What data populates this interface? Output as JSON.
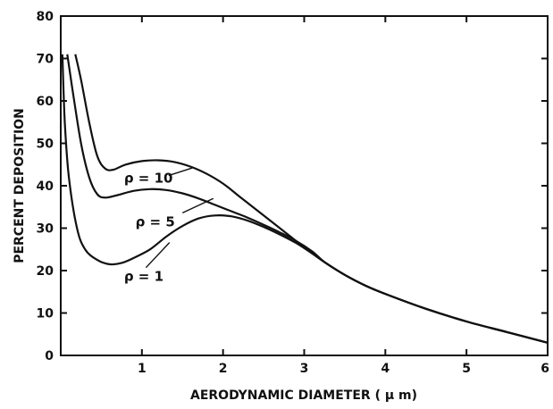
{
  "chart_data": {
    "type": "line",
    "title": "",
    "xlabel": "AERODYNAMIC DIAMETER ( μ m)",
    "ylabel": "PERCENT DEPOSITION",
    "xlim": [
      0,
      6
    ],
    "ylim": [
      0,
      80
    ],
    "x_ticks": [
      "1",
      "2",
      "3",
      "4",
      "5",
      "6"
    ],
    "y_ticks": [
      "0",
      "10",
      "20",
      "30",
      "40",
      "50",
      "60",
      "70",
      "80"
    ],
    "grid": false,
    "series": [
      {
        "name": "ρ = 10",
        "label": "ρ = 10",
        "points": [
          [
            0.18,
            71
          ],
          [
            0.25,
            65
          ],
          [
            0.35,
            55
          ],
          [
            0.45,
            47
          ],
          [
            0.55,
            44
          ],
          [
            0.65,
            43.8
          ],
          [
            0.8,
            45
          ],
          [
            1.0,
            45.8
          ],
          [
            1.2,
            46
          ],
          [
            1.4,
            45.6
          ],
          [
            1.6,
            44.5
          ],
          [
            1.8,
            42.8
          ],
          [
            2.0,
            40.5
          ],
          [
            2.2,
            37.5
          ],
          [
            2.4,
            34.5
          ],
          [
            2.6,
            31.5
          ],
          [
            2.8,
            28.5
          ],
          [
            3.0,
            25.5
          ],
          [
            3.25,
            22
          ],
          [
            3.5,
            19
          ],
          [
            3.75,
            16.5
          ],
          [
            4.0,
            14.5
          ],
          [
            4.5,
            11
          ],
          [
            5.0,
            8
          ],
          [
            5.5,
            5.5
          ],
          [
            6.0,
            3
          ]
        ]
      },
      {
        "name": "ρ = 5",
        "label": "ρ = 5",
        "points": [
          [
            0.08,
            71
          ],
          [
            0.15,
            62
          ],
          [
            0.25,
            50
          ],
          [
            0.35,
            42
          ],
          [
            0.45,
            38
          ],
          [
            0.55,
            37.2
          ],
          [
            0.7,
            37.8
          ],
          [
            0.9,
            38.8
          ],
          [
            1.1,
            39.2
          ],
          [
            1.3,
            39
          ],
          [
            1.5,
            38.2
          ],
          [
            1.7,
            37
          ],
          [
            1.9,
            35.5
          ],
          [
            2.1,
            34
          ],
          [
            2.3,
            32.5
          ],
          [
            2.5,
            30.8
          ],
          [
            2.7,
            29
          ],
          [
            2.9,
            27
          ],
          [
            3.1,
            24.5
          ],
          [
            3.25,
            22
          ],
          [
            3.5,
            19
          ],
          [
            3.75,
            16.5
          ],
          [
            4.0,
            14.5
          ],
          [
            4.5,
            11
          ],
          [
            5.0,
            8
          ],
          [
            5.5,
            5.5
          ],
          [
            6.0,
            3
          ]
        ]
      },
      {
        "name": "ρ = 1",
        "label": "ρ = 1",
        "points": [
          [
            0.02,
            71
          ],
          [
            0.05,
            55
          ],
          [
            0.1,
            42
          ],
          [
            0.2,
            30
          ],
          [
            0.3,
            25
          ],
          [
            0.45,
            22.5
          ],
          [
            0.6,
            21.5
          ],
          [
            0.75,
            21.8
          ],
          [
            0.9,
            23
          ],
          [
            1.1,
            25
          ],
          [
            1.3,
            28
          ],
          [
            1.5,
            30.5
          ],
          [
            1.7,
            32.3
          ],
          [
            1.9,
            33
          ],
          [
            2.1,
            32.8
          ],
          [
            2.3,
            31.8
          ],
          [
            2.5,
            30.3
          ],
          [
            2.7,
            28.5
          ],
          [
            2.9,
            26.5
          ],
          [
            3.1,
            24
          ],
          [
            3.25,
            22
          ],
          [
            3.5,
            19
          ],
          [
            3.75,
            16.5
          ],
          [
            4.0,
            14.5
          ],
          [
            4.5,
            11
          ],
          [
            5.0,
            8
          ],
          [
            5.5,
            5.5
          ],
          [
            6.0,
            3
          ]
        ]
      }
    ]
  }
}
